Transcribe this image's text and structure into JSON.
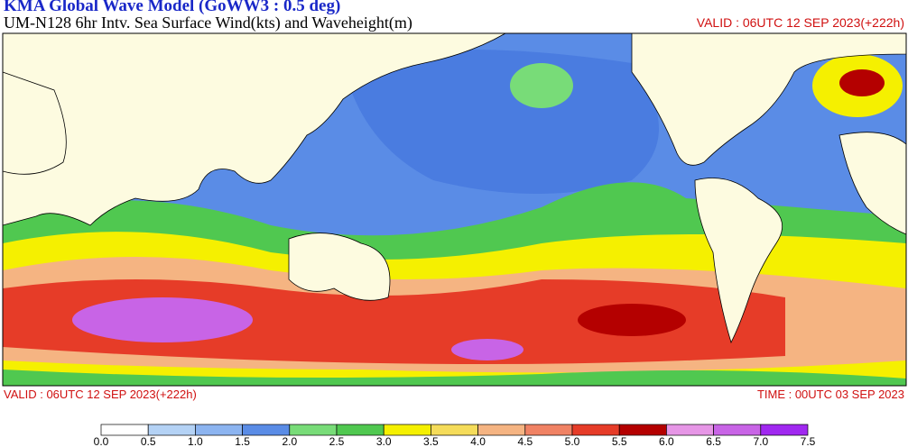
{
  "header": {
    "title": "KMA  Global Wave Model (GoWW3 : 0.5 deg)",
    "subtitle": "UM-N128  6hr Intv. Sea Surface Wind(kts) and Waveheight(m)",
    "valid_top": "VALID : 06UTC 12 SEP 2023(+222h)"
  },
  "footer": {
    "valid": "VALID : 06UTC 12 SEP 2023(+222h)",
    "time": "TIME : 00UTC 03 SEP 2023"
  },
  "legend": {
    "labels": [
      "0.0",
      "0.5",
      "1.0",
      "1.5",
      "2.0",
      "2.5",
      "3.0",
      "3.5",
      "4.0",
      "4.5",
      "5.0",
      "5.5",
      "6.0",
      "6.5",
      "7.0",
      "7.5"
    ],
    "colors": [
      "#ffffff",
      "#b4d2f5",
      "#8cb4f0",
      "#5a8ce6",
      "#78dc78",
      "#50c850",
      "#f5f000",
      "#f5dc5a",
      "#f5b482",
      "#f08264",
      "#e63c28",
      "#b40000",
      "#e696e6",
      "#c864e6",
      "#a028f0"
    ]
  }
}
